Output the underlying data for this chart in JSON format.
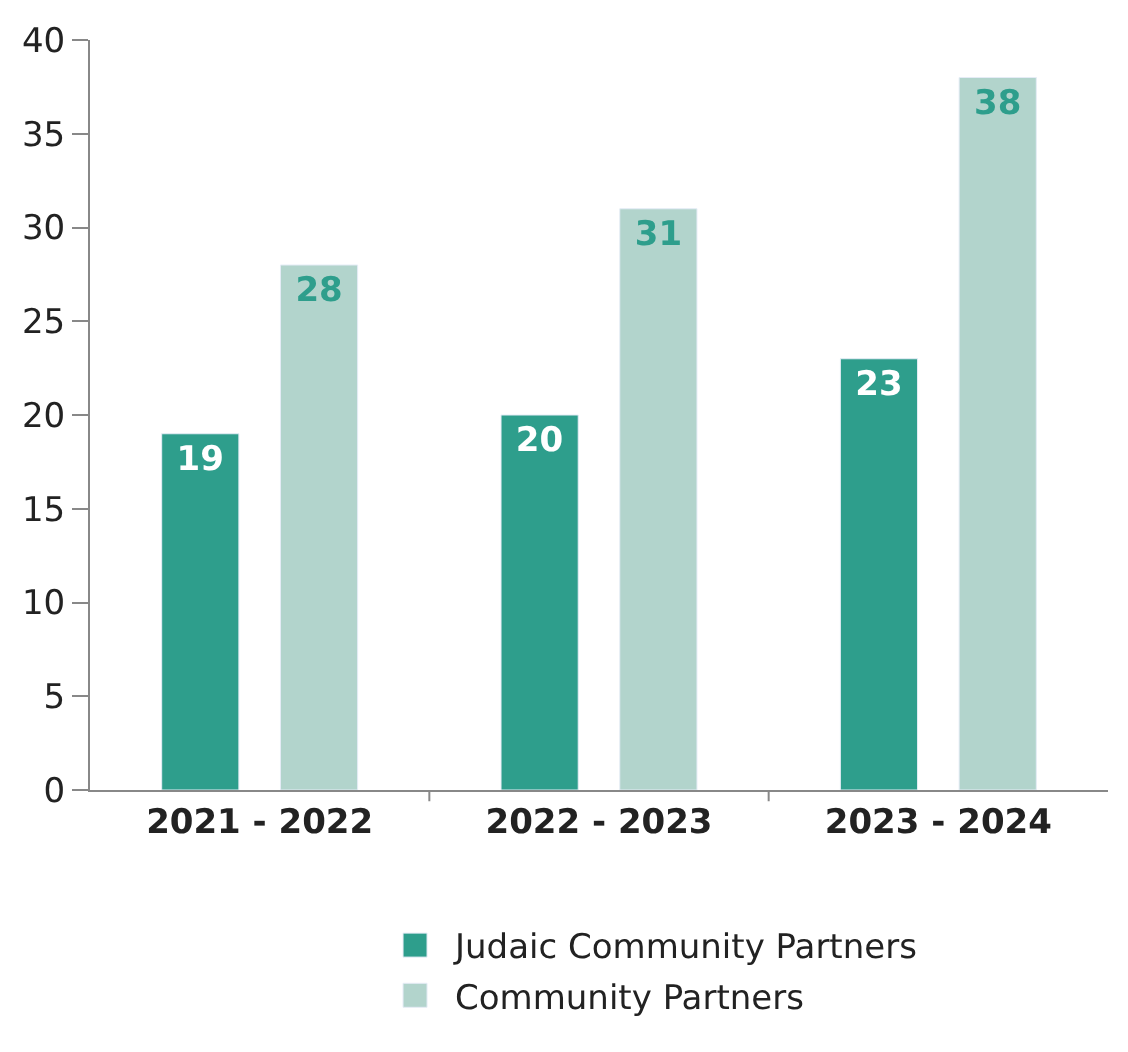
{
  "chart_data": {
    "type": "bar",
    "categories": [
      "2021 - 2022",
      "2022 - 2023",
      "2023 - 2024"
    ],
    "series": [
      {
        "name": "Judaic Community Partners",
        "color": "#2e9e8c",
        "values": [
          19,
          20,
          23
        ]
      },
      {
        "name": "Community Partners",
        "color": "#b2d4cc",
        "values": [
          28,
          31,
          38
        ]
      }
    ],
    "ylim": [
      0,
      40
    ],
    "yticks": [
      0,
      5,
      10,
      15,
      20,
      25,
      30,
      35,
      40
    ],
    "data_labels": true,
    "legend": "bottom"
  }
}
